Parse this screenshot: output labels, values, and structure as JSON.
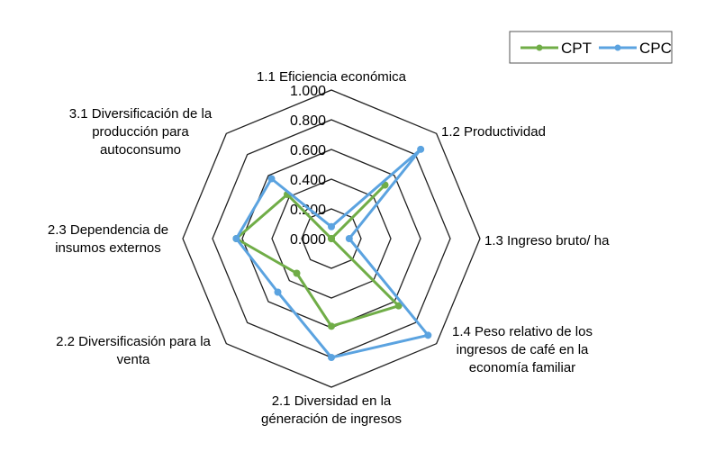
{
  "chart_data": {
    "type": "radar",
    "title": "",
    "axes": [
      "1.1 Eficiencia económica",
      "1.2 Productividad",
      "1.3 Ingreso bruto/ ha",
      "1.4 Peso relativo de los ingresos de café en la economía familiar",
      "2.1 Diversidad en la géneración de ingresos",
      "2.2 Diversificasión para la venta",
      "2.3 Dependencia de insumos externos",
      "3.1 Diversificación de la producción para autoconsumo"
    ],
    "axis_label_lines": [
      [
        "1.1 Eficiencia económica"
      ],
      [
        "1.2 Productividad"
      ],
      [
        "1.3 Ingreso bruto/ ha"
      ],
      [
        "1.4 Peso relativo de los",
        "ingresos de café en la",
        "economía familiar"
      ],
      [
        "2.1 Diversidad en la",
        "géneración de ingresos"
      ],
      [
        "2.2 Diversificasión para la",
        "venta"
      ],
      [
        "2.3 Dependencia de",
        "insumos externos"
      ],
      [
        "3.1 Diversificación de la",
        "producción para",
        "autoconsumo"
      ]
    ],
    "rlim": [
      0,
      1
    ],
    "ticks": [
      "0.000",
      "0.200",
      "0.400",
      "0.600",
      "0.800",
      "1.000"
    ],
    "tick_values": [
      0,
      0.2,
      0.4,
      0.6,
      0.8,
      1.0
    ],
    "grid": true,
    "legend_position": "top-right",
    "series": [
      {
        "name": "CPT",
        "color": "#70ad47",
        "values": [
          0.0,
          0.51,
          0.0,
          0.64,
          0.59,
          0.33,
          0.64,
          0.42
        ]
      },
      {
        "name": "CPC",
        "color": "#5ba3e0",
        "values": [
          0.08,
          0.85,
          0.12,
          0.92,
          0.8,
          0.51,
          0.64,
          0.57
        ]
      }
    ]
  }
}
